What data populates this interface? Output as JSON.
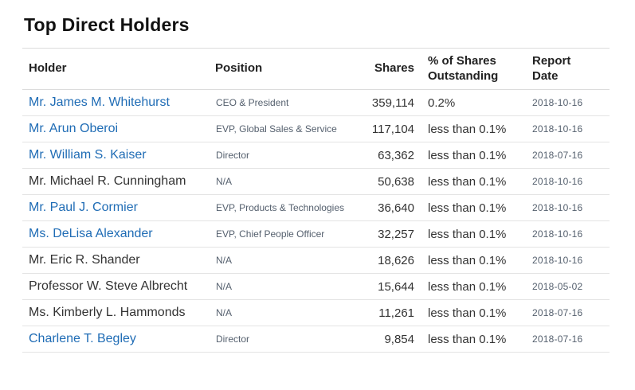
{
  "page": {
    "title": "Top Direct Holders"
  },
  "colors": {
    "background": "#ffffff",
    "title_text": "#111111",
    "header_text": "#222222",
    "body_text": "#333333",
    "muted_text": "#55606e",
    "link_blue": "#1f6cb5",
    "divider": "#dcdcdc",
    "row_divider": "#e4e4e4"
  },
  "table": {
    "headers": {
      "holder": "Holder",
      "position": "Position",
      "shares": "Shares",
      "pct_outstanding": "% of Shares Outstanding",
      "report_date": "Report Date"
    },
    "rows": [
      {
        "holder": "Mr. James M. Whitehurst",
        "is_link": true,
        "position": "CEO & President",
        "shares": "359,114",
        "pct": "0.2%",
        "date": "2018-10-16"
      },
      {
        "holder": "Mr. Arun Oberoi",
        "is_link": true,
        "position": "EVP, Global Sales & Service",
        "shares": "117,104",
        "pct": "less than 0.1%",
        "date": "2018-10-16"
      },
      {
        "holder": "Mr. William S. Kaiser",
        "is_link": true,
        "position": "Director",
        "shares": "63,362",
        "pct": "less than 0.1%",
        "date": "2018-07-16"
      },
      {
        "holder": "Mr. Michael R. Cunningham",
        "is_link": false,
        "position": "N/A",
        "shares": "50,638",
        "pct": "less than 0.1%",
        "date": "2018-10-16"
      },
      {
        "holder": "Mr. Paul J. Cormier",
        "is_link": true,
        "position": "EVP, Products & Technologies",
        "shares": "36,640",
        "pct": "less than 0.1%",
        "date": "2018-10-16"
      },
      {
        "holder": "Ms. DeLisa Alexander",
        "is_link": true,
        "position": "EVP, Chief People Officer",
        "shares": "32,257",
        "pct": "less than 0.1%",
        "date": "2018-10-16"
      },
      {
        "holder": "Mr. Eric R. Shander",
        "is_link": false,
        "position": "N/A",
        "shares": "18,626",
        "pct": "less than 0.1%",
        "date": "2018-10-16"
      },
      {
        "holder": "Professor W. Steve Albrecht",
        "is_link": false,
        "position": "N/A",
        "shares": "15,644",
        "pct": "less than 0.1%",
        "date": "2018-05-02"
      },
      {
        "holder": "Ms. Kimberly L. Hammonds",
        "is_link": false,
        "position": "N/A",
        "shares": "11,261",
        "pct": "less than 0.1%",
        "date": "2018-07-16"
      },
      {
        "holder": "Charlene T. Begley",
        "is_link": true,
        "position": "Director",
        "shares": "9,854",
        "pct": "less than 0.1%",
        "date": "2018-07-16"
      }
    ]
  }
}
